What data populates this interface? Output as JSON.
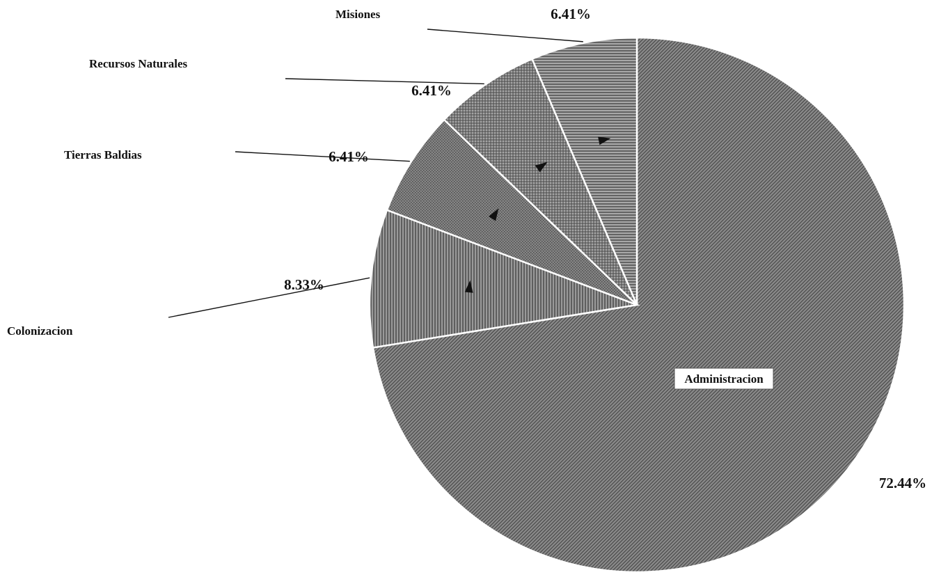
{
  "chart_data": {
    "type": "pie",
    "title": "",
    "slices": [
      {
        "label": "Administracion",
        "value": 72.44,
        "value_label": "72.44%",
        "color": "#8a8a8a",
        "pattern": "diagonal"
      },
      {
        "label": "Colonizacion",
        "value": 8.33,
        "value_label": "8.33%",
        "color": "#8f8f8f",
        "pattern": "vertical"
      },
      {
        "label": "Tierras Baldias",
        "value": 6.41,
        "value_label": "6.41%",
        "color": "#7d7d7d",
        "pattern": "stipple"
      },
      {
        "label": "Recursos Naturales",
        "value": 6.41,
        "value_label": "6.41%",
        "color": "#9a9a9a",
        "pattern": "crosshatch"
      },
      {
        "label": "Misiones",
        "value": 6.41,
        "value_label": "6.41%",
        "color": "#a0a0a0",
        "pattern": "horizontal"
      }
    ],
    "legend": "none"
  }
}
